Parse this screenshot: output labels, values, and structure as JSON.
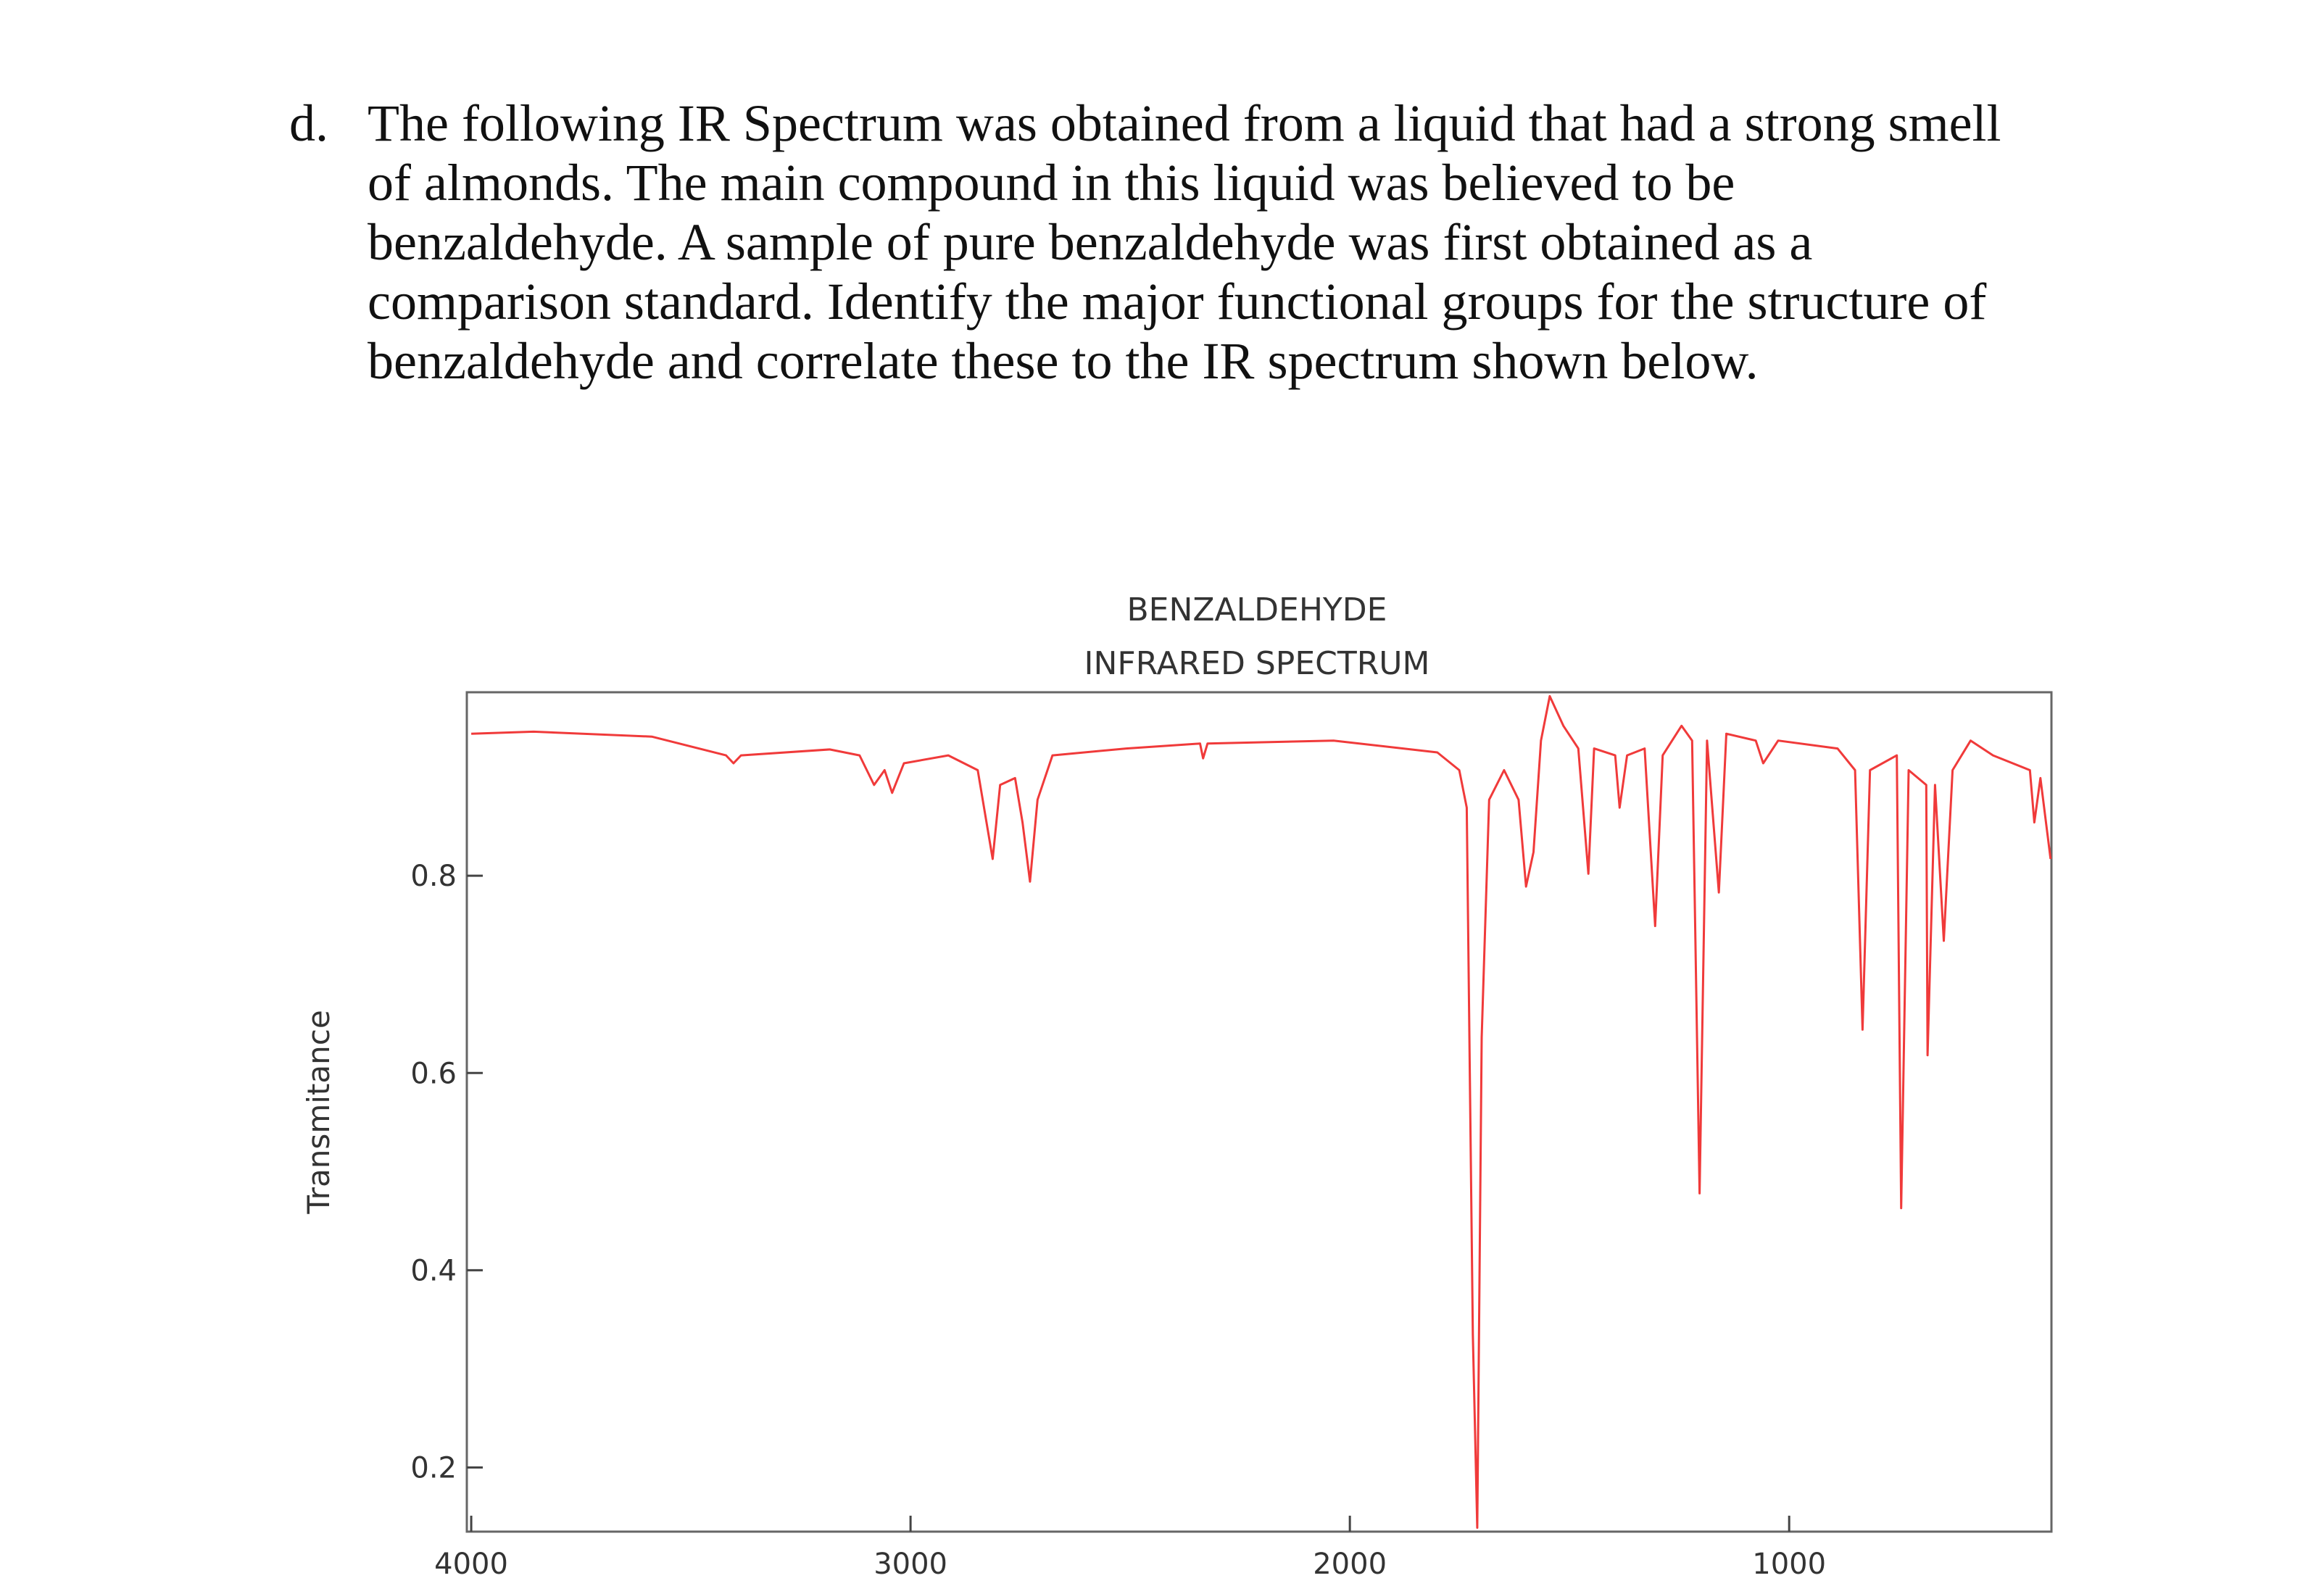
{
  "question": {
    "label": "d.",
    "lines": [
      "The following IR Spectrum was obtained from a liquid that had a strong smell",
      "of almonds.  The main compound in this liquid was believed to be",
      "benzaldehyde.  A sample of pure benzaldehyde was first obtained as a",
      "comparison standard.  Identify the major functional groups for the structure of",
      "benzaldehyde and correlate these to the IR spectrum shown below."
    ]
  },
  "chart_data": {
    "type": "line",
    "title": "BENZALDEHYDE",
    "subtitle": "INFRARED SPECTRUM",
    "ylabel": "Transmitance",
    "color": "#f03a3a",
    "xlim": [
      4010,
      403
    ],
    "xticks": [
      4000,
      3000,
      2000,
      1000
    ],
    "ylim": [
      0.135,
      0.986
    ],
    "yticks": [
      0.2,
      0.4,
      0.6,
      0.8
    ],
    "x": [
      4000,
      3858,
      3589,
      3420,
      3403,
      3386,
      3184,
      3116,
      3083,
      3059,
      3042,
      3015,
      2914,
      2847,
      2813,
      2796,
      2762,
      2745,
      2728,
      2711,
      2677,
      2509,
      2341,
      2334,
      2324,
      2037,
      1801,
      1751,
      1734,
      1720,
      1710,
      1700,
      1683,
      1649,
      1616,
      1599,
      1582,
      1565,
      1545,
      1514,
      1480,
      1457,
      1444,
      1396,
      1386,
      1369,
      1329,
      1305,
      1288,
      1245,
      1221,
      1204,
      1187,
      1160,
      1143,
      1076,
      1059,
      1025,
      890,
      850,
      833,
      816,
      755,
      745,
      728,
      688,
      685,
      668,
      648,
      628,
      587,
      536,
      452,
      442,
      428,
      405
    ],
    "values": [
      0.944,
      0.946,
      0.941,
      0.922,
      0.914,
      0.922,
      0.928,
      0.922,
      0.892,
      0.907,
      0.884,
      0.914,
      0.922,
      0.907,
      0.817,
      0.892,
      0.899,
      0.854,
      0.794,
      0.877,
      0.922,
      0.929,
      0.934,
      0.919,
      0.934,
      0.937,
      0.925,
      0.907,
      0.869,
      0.335,
      0.139,
      0.636,
      0.877,
      0.907,
      0.877,
      0.789,
      0.824,
      0.937,
      0.982,
      0.952,
      0.929,
      0.802,
      0.929,
      0.922,
      0.869,
      0.922,
      0.929,
      0.749,
      0.922,
      0.952,
      0.937,
      0.478,
      0.937,
      0.783,
      0.944,
      0.937,
      0.914,
      0.937,
      0.929,
      0.907,
      0.644,
      0.907,
      0.922,
      0.463,
      0.907,
      0.892,
      0.618,
      0.892,
      0.734,
      0.907,
      0.937,
      0.922,
      0.907,
      0.854,
      0.899,
      0.817
    ]
  }
}
